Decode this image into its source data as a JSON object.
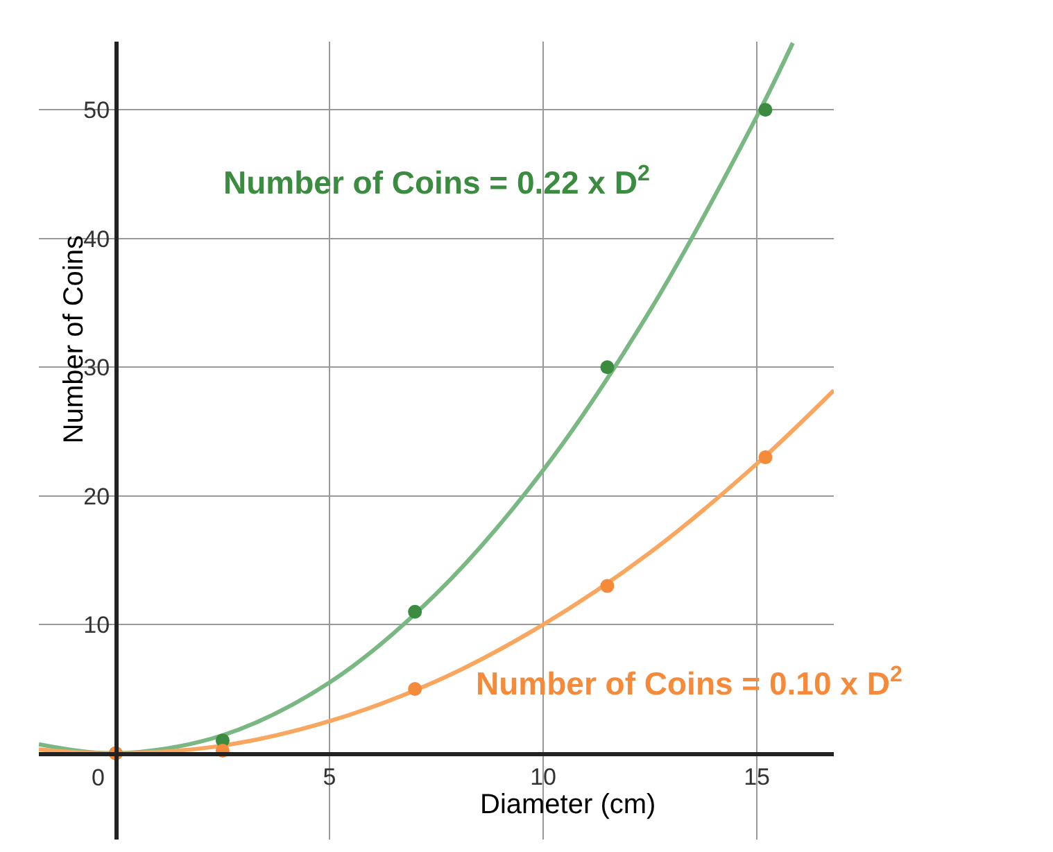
{
  "chart_data": {
    "type": "scatter",
    "xlabel": "Diameter (cm)",
    "ylabel": "Number of Coins",
    "xlim": [
      -1.8,
      16.8
    ],
    "ylim": [
      -6.7,
      55.3
    ],
    "xticks": [
      0,
      5,
      10,
      15
    ],
    "yticks": [
      10,
      20,
      30,
      40,
      50
    ],
    "grid": true,
    "marker": "circle",
    "series": [
      {
        "type": "line",
        "color": "#79b883",
        "x": [
          -1.8,
          0,
          2.5,
          5,
          7.5,
          10,
          12.5,
          15,
          15.84
        ],
        "values": [
          0.7,
          0,
          1.4,
          5.5,
          12.4,
          22,
          34.4,
          49.5,
          55.2
        ],
        "marker": "none"
      },
      {
        "type": "line",
        "color": "#f9a65e",
        "x": [
          -1.8,
          0,
          2.5,
          5,
          7.5,
          10,
          12.5,
          15,
          16.8
        ],
        "values": [
          0.3,
          0,
          0.6,
          2.5,
          5.6,
          10,
          15.6,
          22.5,
          28.2
        ],
        "marker": "none"
      },
      {
        "color": "#3b8c40",
        "x": [
          0,
          2.5,
          7,
          11.5,
          15.2
        ],
        "values": [
          0,
          1,
          11,
          30,
          50
        ]
      },
      {
        "color": "#f58a3a",
        "x": [
          0,
          2.5,
          7,
          11.5,
          15.2
        ],
        "values": [
          0,
          0.2,
          5,
          13,
          23
        ]
      }
    ],
    "annotations": [
      "Number of Coins = 0.22 x D$^{2}$",
      "Number of Coins = 0.10 x D$^{2}$"
    ]
  }
}
